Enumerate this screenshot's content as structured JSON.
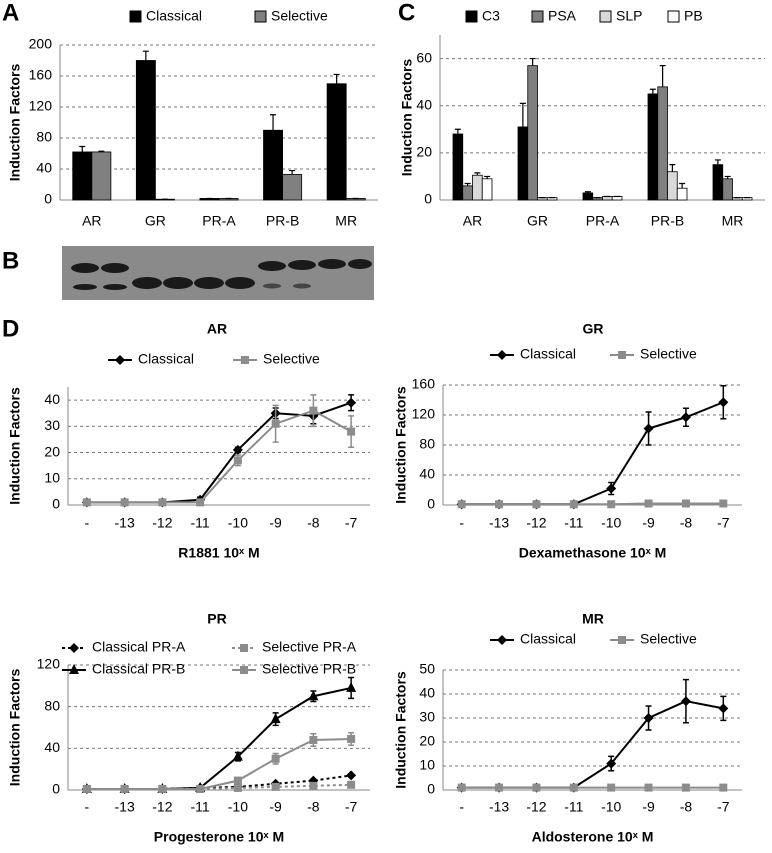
{
  "panel_labels": [
    "A",
    "B",
    "C",
    "D"
  ],
  "chart_data": [
    {
      "type": "bar",
      "ylabel": "Induction Factors",
      "categories": [
        "AR",
        "GR",
        "PR-A",
        "PR-B",
        "MR"
      ],
      "ylim": [
        0,
        200
      ],
      "yticks": [
        0,
        40,
        80,
        120,
        160,
        200
      ],
      "grid": true,
      "series": [
        {
          "name": "Classical",
          "color": "#000000",
          "values": [
            62,
            180,
            2,
            90,
            150
          ],
          "errors": [
            7,
            12,
            0,
            20,
            12
          ]
        },
        {
          "name": "Selective",
          "color": "#808080",
          "values": [
            62,
            1,
            2,
            33,
            2
          ],
          "errors": [
            1,
            0,
            0,
            5,
            0
          ]
        }
      ]
    },
    {
      "type": "bar",
      "ylabel": "Induction Factors",
      "categories": [
        "AR",
        "GR",
        "PR-A",
        "PR-B",
        "MR"
      ],
      "ylim": [
        0,
        70
      ],
      "yticks": [
        0,
        20,
        40,
        60
      ],
      "grid": true,
      "series": [
        {
          "name": "C3",
          "color": "#000000",
          "values": [
            28,
            31,
            3,
            45,
            15
          ],
          "errors": [
            2,
            10,
            0.5,
            2,
            2
          ]
        },
        {
          "name": "PSA",
          "color": "#7f7f7f",
          "values": [
            6,
            57,
            1,
            48,
            9
          ],
          "errors": [
            1,
            3,
            0,
            9,
            1
          ]
        },
        {
          "name": "SLP",
          "color": "#d9d9d9",
          "values": [
            10.5,
            1,
            1.5,
            12,
            1
          ],
          "errors": [
            1,
            0,
            0,
            3,
            0
          ]
        },
        {
          "name": "PB",
          "color": "#ffffff",
          "values": [
            9,
            1,
            1.5,
            5,
            1
          ],
          "errors": [
            1,
            0,
            0,
            2,
            0
          ]
        }
      ]
    },
    {
      "type": "line",
      "title": "AR",
      "xlabel": "R1881 10ˣ M",
      "ylabel": "Induction Factors",
      "categories": [
        "-",
        "-13",
        "-12",
        "-11",
        "-10",
        "-9",
        "-8",
        "-7"
      ],
      "ylim": [
        0,
        45
      ],
      "yticks": [
        0,
        10,
        20,
        30,
        40
      ],
      "grid": true,
      "series": [
        {
          "name": "Classical",
          "color": "#000000",
          "marker": "diamond",
          "dashed": false,
          "values": [
            1,
            1,
            1,
            2,
            21,
            35,
            34,
            39
          ],
          "errors": [
            0,
            0,
            0,
            1,
            1,
            2,
            3,
            3
          ]
        },
        {
          "name": "Selective",
          "color": "#8c8c8c",
          "marker": "square",
          "dashed": false,
          "values": [
            1,
            1,
            1,
            1,
            17,
            31,
            36,
            28
          ],
          "errors": [
            0,
            0,
            0,
            0,
            2,
            7,
            6,
            6
          ]
        }
      ]
    },
    {
      "type": "line",
      "title": "GR",
      "xlabel": "Dexamethasone 10ˣ M",
      "ylabel": "Induction Factors",
      "categories": [
        "-",
        "-13",
        "-12",
        "-11",
        "-10",
        "-9",
        "-8",
        "-7"
      ],
      "ylim": [
        0,
        160
      ],
      "yticks": [
        0,
        40,
        80,
        120,
        160
      ],
      "grid": true,
      "series": [
        {
          "name": "Classical",
          "color": "#000000",
          "marker": "diamond",
          "dashed": false,
          "values": [
            1,
            1,
            1,
            1,
            22,
            102,
            117,
            137
          ],
          "errors": [
            0,
            0,
            0,
            0,
            8,
            22,
            12,
            22
          ]
        },
        {
          "name": "Selective",
          "color": "#8c8c8c",
          "marker": "square",
          "dashed": false,
          "values": [
            1,
            1,
            1,
            1,
            1,
            2,
            2,
            2
          ],
          "errors": [
            0,
            0,
            0,
            0,
            0,
            0,
            0,
            0
          ]
        }
      ]
    },
    {
      "type": "line",
      "title": "PR",
      "xlabel": "Progesterone 10ˣ M",
      "ylabel": "Induction Factors",
      "categories": [
        "-",
        "-13",
        "-12",
        "-11",
        "-10",
        "-9",
        "-8",
        "-7"
      ],
      "ylim": [
        0,
        120
      ],
      "yticks": [
        0,
        40,
        80,
        120
      ],
      "grid": true,
      "series": [
        {
          "name": "Classical PR-A",
          "color": "#000000",
          "marker": "diamond",
          "dashed": true,
          "values": [
            1,
            1,
            1,
            2,
            3,
            6,
            9,
            14
          ],
          "errors": [
            0,
            0,
            0,
            0,
            0,
            0,
            0,
            0
          ]
        },
        {
          "name": "Selective PR-A",
          "color": "#8c8c8c",
          "marker": "square",
          "dashed": true,
          "values": [
            1,
            1,
            1,
            1,
            2,
            3,
            4,
            5
          ],
          "errors": [
            0,
            0,
            0,
            0,
            0,
            0,
            0,
            0
          ]
        },
        {
          "name": "Classical PR-B",
          "color": "#000000",
          "marker": "triangle",
          "dashed": false,
          "values": [
            1,
            1,
            1,
            2,
            32,
            68,
            90,
            98
          ],
          "errors": [
            0,
            0,
            0,
            0,
            4,
            6,
            5,
            10
          ]
        },
        {
          "name": "Selective PR-B",
          "color": "#8c8c8c",
          "marker": "square",
          "dashed": false,
          "values": [
            1,
            1,
            1,
            1,
            9,
            30,
            48,
            49
          ],
          "errors": [
            0,
            0,
            0,
            0,
            3,
            5,
            6,
            6
          ]
        }
      ]
    },
    {
      "type": "line",
      "title": "MR",
      "xlabel": "Aldosterone 10ˣ M",
      "ylabel": "Induction Factors",
      "categories": [
        "-",
        "-13",
        "-12",
        "-11",
        "-10",
        "-9",
        "-8",
        "-7"
      ],
      "ylim": [
        0,
        50
      ],
      "yticks": [
        0,
        10,
        20,
        30,
        40,
        50
      ],
      "grid": true,
      "series": [
        {
          "name": "Classical",
          "color": "#000000",
          "marker": "diamond",
          "dashed": false,
          "values": [
            1,
            1,
            1,
            1,
            11,
            30,
            37,
            34
          ],
          "errors": [
            0,
            0,
            0,
            0,
            3,
            5,
            9,
            5
          ]
        },
        {
          "name": "Selective",
          "color": "#8c8c8c",
          "marker": "square",
          "dashed": false,
          "values": [
            1,
            1,
            1,
            1,
            1,
            1,
            1,
            1
          ],
          "errors": [
            0,
            0,
            0,
            0,
            0,
            0,
            0,
            0
          ]
        }
      ]
    }
  ]
}
